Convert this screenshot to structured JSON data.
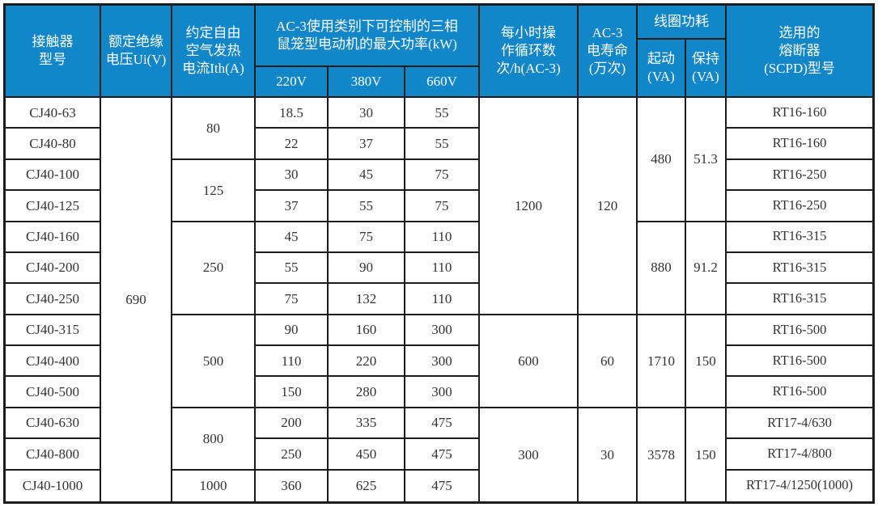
{
  "colors": {
    "header_bg": "#1186c8",
    "header_text": "#ffffff",
    "border": "#1c1c1c",
    "cell_text": "#333333",
    "background": "#ffffff"
  },
  "header": {
    "model": "接触器\n型号",
    "ui": "额定绝缘\n电压Ui(V)",
    "ith": "约定自由\n空气发热\n电流Ith(A)",
    "power_group": "AC-3使用类别下可控制的三相\n鼠笼型电动机的最大功率(kW)",
    "v220": "220V",
    "v380": "380V",
    "v660": "660V",
    "cycles": "每小时操\n作循环数\n次/h(AC-3)",
    "life": "AC-3\n电寿命\n(万次)",
    "coil_group": "线圈功耗",
    "coil_start": "起动\n(VA)",
    "coil_hold": "保持\n(VA)",
    "fuse": "选用的\n熔断器\n(SCPD)型号"
  },
  "ui_voltage": "690",
  "ith_groups": [
    "80",
    "125",
    "250",
    "500",
    "800",
    "1000"
  ],
  "cycle_groups": [
    "1200",
    "600",
    "300"
  ],
  "life_groups": [
    "120",
    "60",
    "30"
  ],
  "coil_start_groups": [
    "480",
    "880",
    "1710",
    "3578"
  ],
  "coil_hold_groups": [
    "51.3",
    "91.2",
    "150",
    "150"
  ],
  "rows": [
    {
      "model": "CJ40-63",
      "kw220": "18.5",
      "kw380": "30",
      "kw660": "55",
      "fuse": "RT16-160"
    },
    {
      "model": "CJ40-80",
      "kw220": "22",
      "kw380": "37",
      "kw660": "55",
      "fuse": "RT16-160"
    },
    {
      "model": "CJ40-100",
      "kw220": "30",
      "kw380": "45",
      "kw660": "75",
      "fuse": "RT16-250"
    },
    {
      "model": "CJ40-125",
      "kw220": "37",
      "kw380": "55",
      "kw660": "75",
      "fuse": "RT16-250"
    },
    {
      "model": "CJ40-160",
      "kw220": "45",
      "kw380": "75",
      "kw660": "110",
      "fuse": "RT16-315"
    },
    {
      "model": "CJ40-200",
      "kw220": "55",
      "kw380": "90",
      "kw660": "110",
      "fuse": "RT16-315"
    },
    {
      "model": "CJ40-250",
      "kw220": "75",
      "kw380": "132",
      "kw660": "110",
      "fuse": "RT16-315"
    },
    {
      "model": "CJ40-315",
      "kw220": "90",
      "kw380": "160",
      "kw660": "300",
      "fuse": "RT16-500"
    },
    {
      "model": "CJ40-400",
      "kw220": "110",
      "kw380": "220",
      "kw660": "300",
      "fuse": "RT16-500"
    },
    {
      "model": "CJ40-500",
      "kw220": "150",
      "kw380": "280",
      "kw660": "300",
      "fuse": "RT16-500"
    },
    {
      "model": "CJ40-630",
      "kw220": "200",
      "kw380": "335",
      "kw660": "475",
      "fuse": "RT17-4/630"
    },
    {
      "model": "CJ40-800",
      "kw220": "250",
      "kw380": "450",
      "kw660": "475",
      "fuse": "RT17-4/800"
    },
    {
      "model": "CJ40-1000",
      "kw220": "360",
      "kw380": "625",
      "kw660": "475",
      "fuse": "RT17-4/1250(1000)"
    }
  ]
}
